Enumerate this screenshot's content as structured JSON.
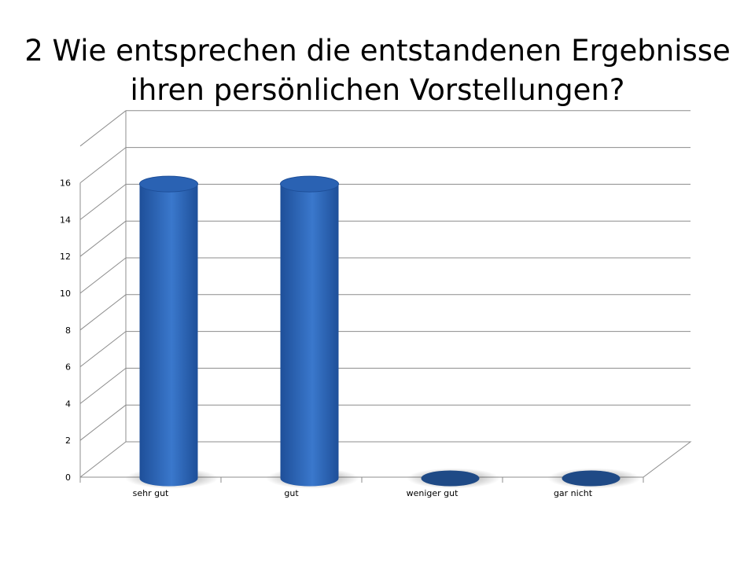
{
  "slide": {
    "title_line1": "2 Wie entsprechen die entstandenen Ergebnisse",
    "title_line2": "ihren persönlichen Vorstellungen?"
  },
  "colors": {
    "bar": "#3a78cc",
    "bar_dark": "#1e4f99",
    "bar_top": "#2a62b3",
    "zero_disc": "#1f4a86",
    "grid": "#8c8c8c"
  },
  "chart_data": {
    "type": "bar",
    "style": "3d-cylinder",
    "categories": [
      "sehr gut",
      "gut",
      "weniger gut",
      "gar nicht"
    ],
    "values": [
      16,
      16,
      0,
      0
    ],
    "yticks": [
      0,
      2,
      4,
      6,
      8,
      10,
      12,
      14,
      16
    ],
    "ylim": [
      0,
      18
    ],
    "grid": true,
    "legend": "none",
    "title": "",
    "xlabel": "",
    "ylabel": ""
  }
}
